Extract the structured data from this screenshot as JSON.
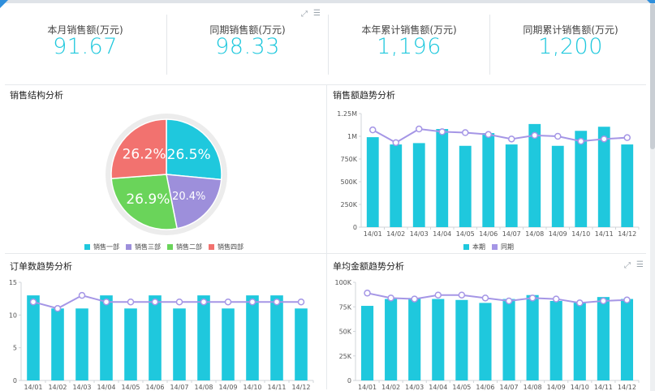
{
  "kpis": [
    {
      "label": "本月销售额(万元)",
      "value": "91.67"
    },
    {
      "label": "同期销售额(万元)",
      "value": "98.33"
    },
    {
      "label": "本年累计销售额(万元)",
      "value": "1,196"
    },
    {
      "label": "同期累计销售额(万元)",
      "value": "1,200"
    }
  ],
  "toolbar_icons": [
    "expand-icon",
    "menu-icon"
  ],
  "colors": {
    "bar": "#1fc8dd",
    "line": "#a596e6",
    "purple": "#9d8fdb",
    "green": "#6ad45a",
    "red": "#f2726f",
    "cyan": "#1fc8dd"
  },
  "chart_data": [
    {
      "type": "pie",
      "title": "销售结构分析",
      "slices": [
        {
          "label": "销售一部",
          "value": 26.5,
          "display": "26.5%",
          "color": "#1fc8dd"
        },
        {
          "label": "销售三部",
          "value": 20.4,
          "display": "20.4%",
          "color": "#9d8fdb"
        },
        {
          "label": "销售二部",
          "value": 26.9,
          "display": "26.9%",
          "color": "#6ad45a"
        },
        {
          "label": "销售四部",
          "value": 26.2,
          "display": "26.2%",
          "color": "#f2726f"
        }
      ],
      "legend": [
        "销售一部",
        "销售三部",
        "销售二部",
        "销售四部"
      ]
    },
    {
      "type": "bar",
      "title": "销售额趋势分析",
      "categories": [
        "14/01",
        "14/02",
        "14/03",
        "14/04",
        "14/05",
        "14/06",
        "14/07",
        "14/08",
        "14/09",
        "14/10",
        "14/11",
        "14/12"
      ],
      "yticks": [
        "0",
        "250K",
        "500K",
        "750K",
        "1M",
        "1.25M"
      ],
      "ylim": [
        0,
        1250000
      ],
      "series": [
        {
          "name": "本期",
          "kind": "bar",
          "values": [
            990000,
            910000,
            925000,
            1080000,
            895000,
            1035000,
            910000,
            1135000,
            895000,
            1060000,
            1105000,
            910000
          ]
        },
        {
          "name": "同期",
          "kind": "line",
          "values": [
            1070000,
            930000,
            1080000,
            1050000,
            1040000,
            1020000,
            970000,
            1010000,
            1000000,
            945000,
            970000,
            985000
          ]
        }
      ],
      "legend": [
        "本期",
        "同期"
      ]
    },
    {
      "type": "bar",
      "title": "订单数趋势分析",
      "categories": [
        "14/01",
        "14/02",
        "14/03",
        "14/04",
        "14/05",
        "14/06",
        "14/07",
        "14/08",
        "14/09",
        "14/10",
        "14/11",
        "14/12"
      ],
      "yticks": [
        "0",
        "5",
        "10",
        "15"
      ],
      "ylim": [
        0,
        15
      ],
      "series": [
        {
          "name": "本期",
          "kind": "bar",
          "values": [
            13,
            11,
            11,
            13,
            11,
            13,
            11,
            13,
            11,
            13,
            13,
            11
          ]
        },
        {
          "name": "同期",
          "kind": "line",
          "values": [
            12,
            11,
            13,
            12,
            12,
            12,
            12,
            12,
            12,
            12,
            12,
            12
          ]
        }
      ]
    },
    {
      "type": "bar",
      "title": "单均金额趋势分析",
      "categories": [
        "14/01",
        "14/02",
        "14/03",
        "14/04",
        "14/05",
        "14/06",
        "14/07",
        "14/08",
        "14/09",
        "14/10",
        "14/11",
        "14/12"
      ],
      "yticks": [
        "0",
        "25K",
        "50K",
        "75K",
        "100K"
      ],
      "ylim": [
        0,
        100000
      ],
      "series": [
        {
          "name": "本期",
          "kind": "bar",
          "values": [
            76000,
            83000,
            84000,
            83000,
            82000,
            79000,
            83000,
            87000,
            81000,
            80000,
            85000,
            83000
          ]
        },
        {
          "name": "同期",
          "kind": "line",
          "values": [
            89000,
            84000,
            83000,
            87000,
            87000,
            84000,
            81000,
            84000,
            83000,
            79000,
            81000,
            82000
          ]
        }
      ]
    }
  ]
}
